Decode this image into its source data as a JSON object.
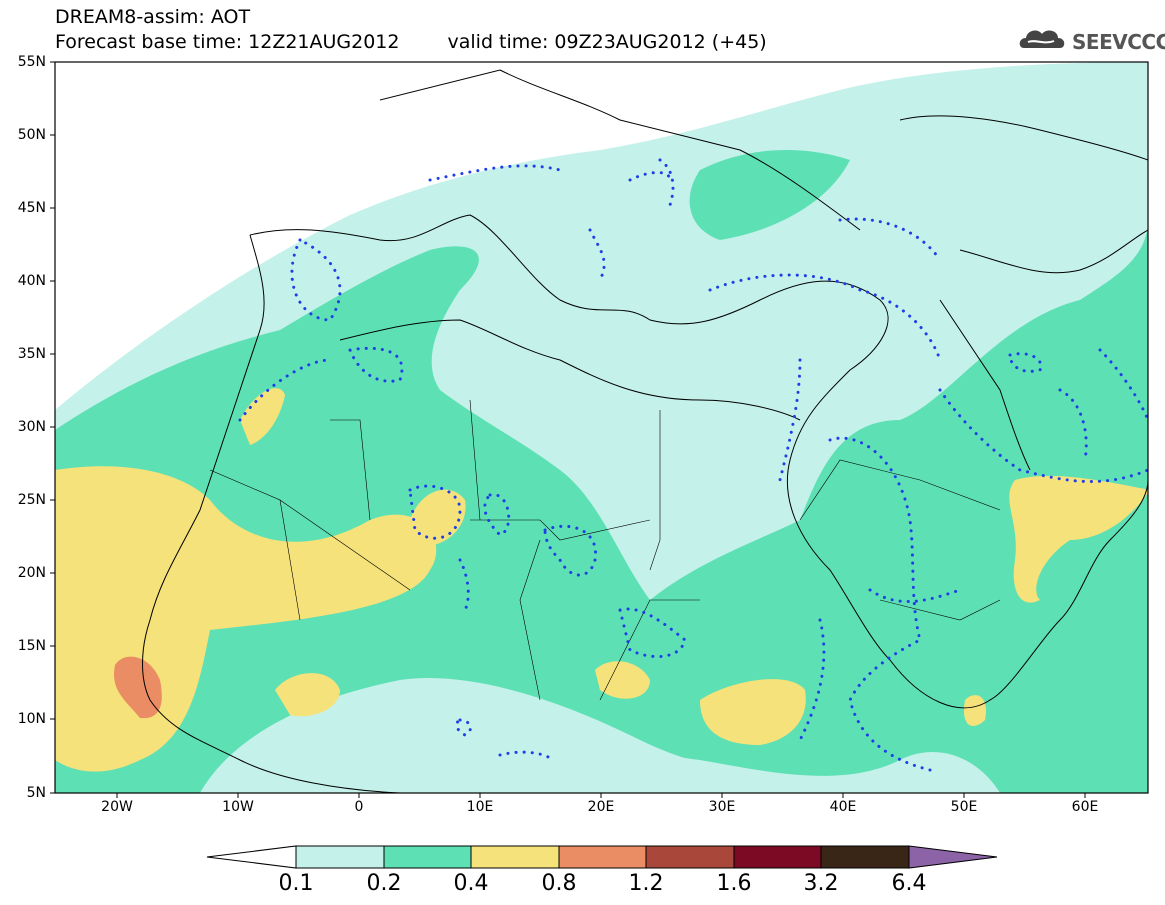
{
  "header": {
    "model_line": "DREAM8-assim: AOT",
    "base_time": "Forecast base time: 12Z21AUG2012",
    "valid_time": "valid time: 09Z23AUG2012 (+45)",
    "logo_text": "SEEVCCC"
  },
  "axes": {
    "lat_labels": [
      "55N",
      "50N",
      "45N",
      "40N",
      "35N",
      "30N",
      "25N",
      "20N",
      "15N",
      "10N",
      "5N"
    ],
    "lon_labels": [
      "20W",
      "10W",
      "0",
      "10E",
      "20E",
      "30E",
      "40E",
      "50E",
      "60E"
    ]
  },
  "colorbar": {
    "levels": [
      "0.1",
      "0.2",
      "0.4",
      "0.8",
      "1.2",
      "1.6",
      "3.2",
      "6.4"
    ],
    "colors": [
      "#c4f1ea",
      "#5ee0b5",
      "#f6e27a",
      "#ea8c64",
      "#a8473a",
      "#7d0a24",
      "#3a2617",
      "#8b63a6"
    ]
  },
  "map": {
    "region": "Europe, North Africa, Middle East",
    "variable": "Aerosol optical thickness",
    "land_fill": "#ffffff",
    "contour_style": "dotted blue",
    "contour_color": "#1f3ee8"
  }
}
